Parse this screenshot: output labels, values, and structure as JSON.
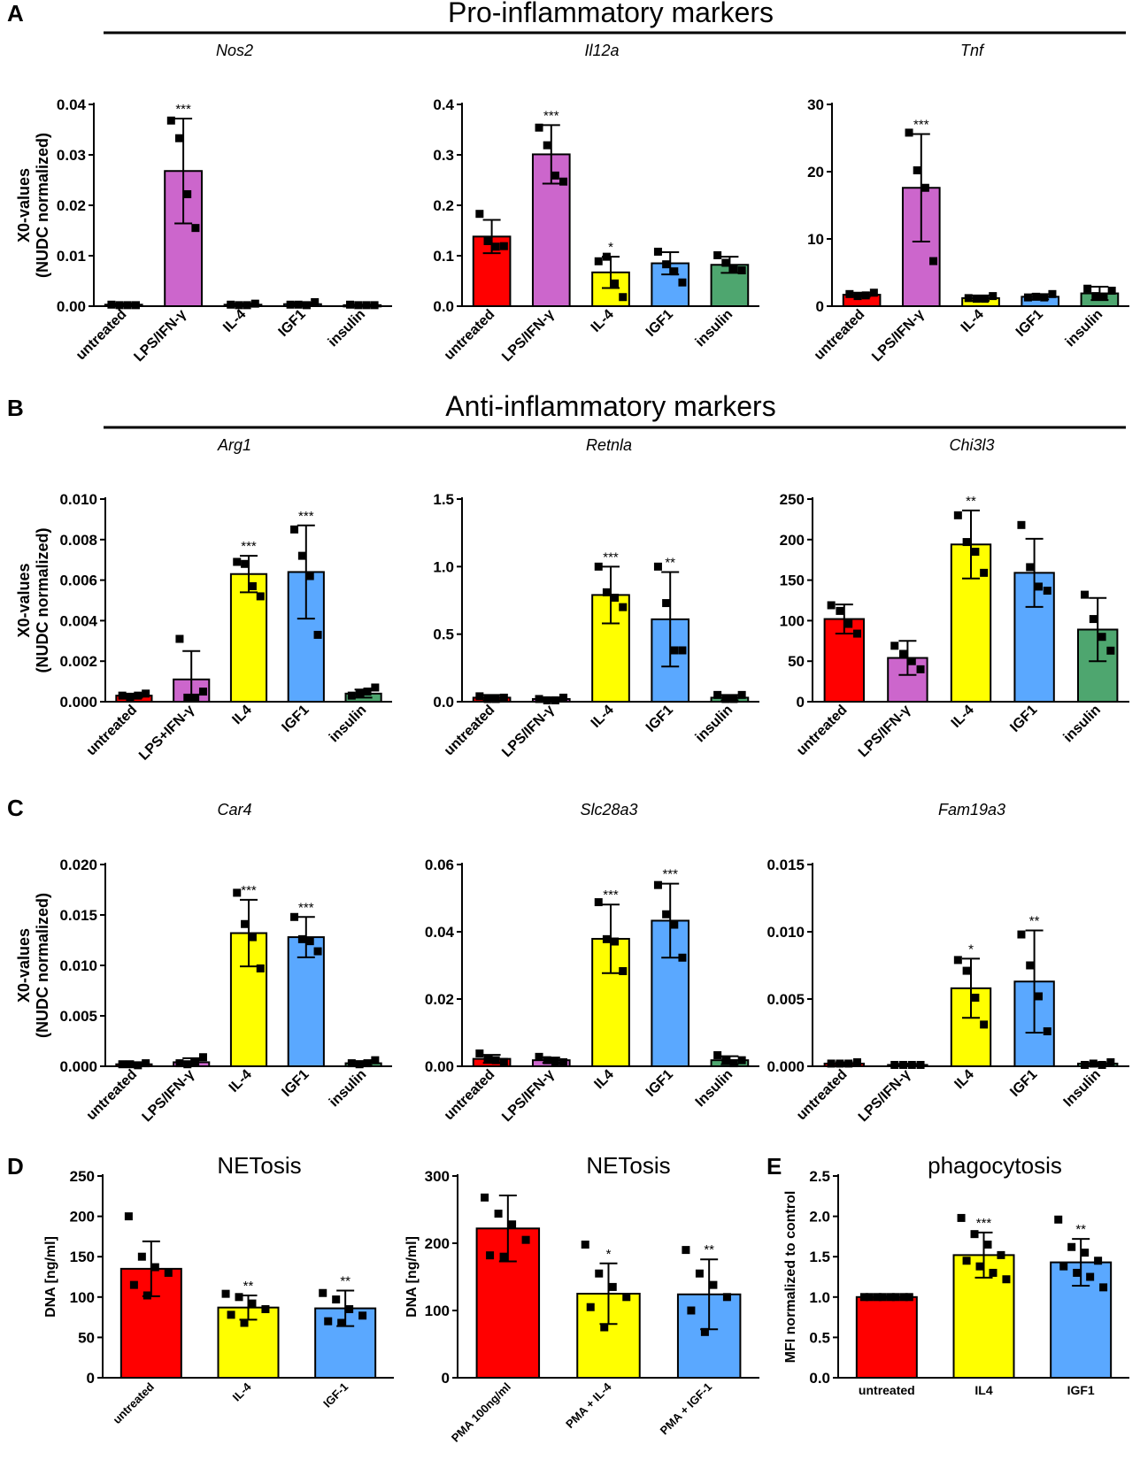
{
  "figure": {
    "panel_labels": [
      "A",
      "B",
      "C",
      "D",
      "E"
    ],
    "section_titles": [
      "Pro-inflammatory markers",
      "Anti-inflammatory markers"
    ]
  },
  "colors": {
    "red": "#ff0000",
    "magenta": "#cc66cc",
    "yellow": "#ffff00",
    "blue": "#5aa8ff",
    "green": "#4ea66f"
  },
  "chart_data": [
    {
      "id": "nos2",
      "type": "bar",
      "title": "Nos2",
      "title_italic": true,
      "ylabel": [
        "X0-values",
        "(NUDC normalized)"
      ],
      "ylim": [
        0,
        0.04
      ],
      "yticks": [
        "0.00",
        "0.01",
        "0.02",
        "0.03",
        "0.04"
      ],
      "categories": [
        "untreated",
        "LPS/IFN-γ",
        "IL-4",
        "IGF1",
        "insulin"
      ],
      "colors": [
        "red",
        "magenta",
        "yellow",
        "blue",
        "green"
      ],
      "values": [
        0.0003,
        0.0268,
        0.0003,
        0.0004,
        0.0002
      ],
      "errors": [
        0.0002,
        0.0104,
        0.0002,
        0.0003,
        0.0001
      ],
      "points": [
        [
          0.0003,
          0.0002,
          0.0002,
          0.0002
        ],
        [
          0.0368,
          0.0333,
          0.0222,
          0.0155
        ],
        [
          0.0003,
          0.0002,
          0.0002,
          0.0005
        ],
        [
          0.0003,
          0.0003,
          0.0002,
          0.0008
        ],
        [
          0.0003,
          0.0002,
          0.0002,
          0.0002
        ]
      ],
      "stars": [
        "",
        "***",
        "",
        "",
        ""
      ]
    },
    {
      "id": "il12a",
      "type": "bar",
      "title": "Il12a",
      "title_italic": true,
      "ylabel": [],
      "ylim": [
        0,
        0.4
      ],
      "yticks": [
        "0.0",
        "0.1",
        "0.2",
        "0.3",
        "0.4"
      ],
      "categories": [
        "untreated",
        "LPS/IFN-γ",
        "IL-4",
        "IGF1",
        "insulin"
      ],
      "colors": [
        "red",
        "magenta",
        "yellow",
        "blue",
        "green"
      ],
      "values": [
        0.138,
        0.301,
        0.067,
        0.085,
        0.082
      ],
      "errors": [
        0.033,
        0.058,
        0.031,
        0.022,
        0.016
      ],
      "points": [
        [
          0.183,
          0.129,
          0.118,
          0.119
        ],
        [
          0.354,
          0.319,
          0.259,
          0.247
        ],
        [
          0.089,
          0.098,
          0.045,
          0.018
        ],
        [
          0.108,
          0.083,
          0.069,
          0.047
        ],
        [
          0.101,
          0.086,
          0.074,
          0.071
        ]
      ],
      "stars": [
        "",
        "***",
        "*",
        "",
        ""
      ]
    },
    {
      "id": "tnf",
      "type": "bar",
      "title": "Tnf",
      "title_italic": true,
      "ylabel": [],
      "ylim": [
        0,
        30
      ],
      "yticks": [
        "0",
        "10",
        "20",
        "30"
      ],
      "categories": [
        "untreated",
        "LPS/IFN-γ",
        "IL-4",
        "IGF1",
        "insulin"
      ],
      "colors": [
        "red",
        "magenta",
        "yellow",
        "blue",
        "green"
      ],
      "values": [
        1.7,
        17.6,
        1.2,
        1.4,
        1.9
      ],
      "errors": [
        0.3,
        8.0,
        0.4,
        0.4,
        1.0
      ],
      "points": [
        [
          1.8,
          1.5,
          1.6,
          2.0
        ],
        [
          25.8,
          20.2,
          17.6,
          6.7
        ],
        [
          1.2,
          1.1,
          1.1,
          1.5
        ],
        [
          1.3,
          1.4,
          1.3,
          1.8
        ],
        [
          2.6,
          1.5,
          1.4,
          2.3
        ]
      ],
      "stars": [
        "",
        "***",
        "",
        "",
        ""
      ]
    },
    {
      "id": "arg1",
      "type": "bar",
      "title": "Arg1",
      "title_italic": true,
      "ylabel": [
        "X0-values",
        "(NUDC normalized)"
      ],
      "ylim": [
        0,
        0.01
      ],
      "yticks": [
        "0.000",
        "0.002",
        "0.004",
        "0.006",
        "0.008",
        "0.010"
      ],
      "categories": [
        "untreated",
        "LPS+IFN-γ",
        "IL4",
        "IGF1",
        "insulin"
      ],
      "colors": [
        "red",
        "magenta",
        "yellow",
        "blue",
        "green"
      ],
      "values": [
        0.0003,
        0.0011,
        0.0063,
        0.0064,
        0.0004
      ],
      "errors": [
        0.0001,
        0.0014,
        0.0009,
        0.0023,
        0.0002
      ],
      "points": [
        [
          0.0003,
          0.0002,
          0.0003,
          0.0004
        ],
        [
          0.0031,
          0.0002,
          0.0002,
          0.0005
        ],
        [
          0.0069,
          0.0068,
          0.0057,
          0.0052
        ],
        [
          0.0085,
          0.0072,
          0.0062,
          0.0033
        ],
        [
          0.0003,
          0.0004,
          0.0005,
          0.0007
        ]
      ],
      "stars": [
        "",
        "",
        "***",
        "***",
        ""
      ]
    },
    {
      "id": "retnla",
      "type": "bar",
      "title": "Retnla",
      "title_italic": true,
      "ylabel": [],
      "ylim": [
        0,
        1.5
      ],
      "yticks": [
        "0.0",
        "0.5",
        "1.0",
        "1.5"
      ],
      "categories": [
        "untreated",
        "LPS/IFN-γ",
        "IL-4",
        "IGF1",
        "insulin"
      ],
      "colors": [
        "red",
        "magenta",
        "yellow",
        "blue",
        "green"
      ],
      "values": [
        0.03,
        0.02,
        0.79,
        0.61,
        0.03
      ],
      "errors": [
        0.02,
        0.01,
        0.21,
        0.35,
        0.02
      ],
      "points": [
        [
          0.04,
          0.02,
          0.02,
          0.03
        ],
        [
          0.02,
          0.01,
          0.01,
          0.03
        ],
        [
          1.0,
          0.81,
          0.77,
          0.7
        ],
        [
          1.0,
          0.73,
          0.38,
          0.38
        ],
        [
          0.05,
          0.02,
          0.02,
          0.05
        ]
      ],
      "stars": [
        "",
        "",
        "***",
        "**",
        ""
      ]
    },
    {
      "id": "chi3l3",
      "type": "bar",
      "title": "Chi3l3",
      "title_italic": true,
      "ylabel": [],
      "ylim": [
        0,
        250
      ],
      "yticks": [
        "0",
        "50",
        "100",
        "150",
        "200",
        "250"
      ],
      "categories": [
        "untreated",
        "LPS/IFN-γ",
        "IL-4",
        "IGF1",
        "insulin"
      ],
      "colors": [
        "red",
        "magenta",
        "yellow",
        "blue",
        "green"
      ],
      "values": [
        102,
        54,
        194,
        159,
        89
      ],
      "errors": [
        18,
        21,
        42,
        42,
        39
      ],
      "points": [
        [
          119,
          112,
          96,
          84
        ],
        [
          69,
          59,
          50,
          40
        ],
        [
          230,
          197,
          185,
          159
        ],
        [
          218,
          166,
          142,
          137
        ],
        [
          132,
          102,
          80,
          63
        ]
      ],
      "stars": [
        "",
        "",
        "**",
        "",
        ""
      ]
    },
    {
      "id": "car4",
      "type": "bar",
      "title": "Car4",
      "title_italic": true,
      "ylabel": [
        "X0-values",
        "(NUDC normalized)"
      ],
      "ylim": [
        0,
        0.02
      ],
      "yticks": [
        "0.000",
        "0.005",
        "0.010",
        "0.015",
        "0.020"
      ],
      "categories": [
        "untreated",
        "LPS/IFN-γ",
        "IL-4",
        "IGF1",
        "insulin"
      ],
      "colors": [
        "red",
        "magenta",
        "yellow",
        "blue",
        "green"
      ],
      "values": [
        0.0002,
        0.0004,
        0.0132,
        0.0128,
        0.0003
      ],
      "errors": [
        0.0001,
        0.0004,
        0.0033,
        0.002,
        0.0002
      ],
      "points": [
        [
          0.0002,
          0.0002,
          0.0001,
          0.0003
        ],
        [
          0.0003,
          0.0002,
          0.0004,
          0.0009
        ],
        [
          0.0172,
          0.0141,
          0.0128,
          0.0097
        ],
        [
          0.0148,
          0.0126,
          0.0124,
          0.0114
        ],
        [
          0.0003,
          0.0002,
          0.0003,
          0.0006
        ]
      ],
      "stars": [
        "",
        "",
        "***",
        "***",
        ""
      ]
    },
    {
      "id": "slc28a3",
      "type": "bar",
      "title": "Slc28a3",
      "title_italic": true,
      "ylabel": [],
      "ylim": [
        0,
        0.06
      ],
      "yticks": [
        "0.00",
        "0.02",
        "0.04",
        "0.06"
      ],
      "categories": [
        "untreated",
        "LPS/IFN-γ",
        "IL4",
        "IGF1",
        "Insulin"
      ],
      "colors": [
        "red",
        "magenta",
        "yellow",
        "blue",
        "green"
      ],
      "values": [
        0.0022,
        0.0018,
        0.0379,
        0.0433,
        0.0018
      ],
      "errors": [
        0.0012,
        0.0008,
        0.0102,
        0.011,
        0.0012
      ],
      "points": [
        [
          0.0038,
          0.0022,
          0.0018,
          0.0013
        ],
        [
          0.0028,
          0.0018,
          0.0013,
          0.0012
        ],
        [
          0.0488,
          0.0378,
          0.0371,
          0.0283
        ],
        [
          0.0539,
          0.0452,
          0.0421,
          0.0323
        ],
        [
          0.0033,
          0.0016,
          0.0009,
          0.0018
        ]
      ],
      "stars": [
        "",
        "",
        "***",
        "***",
        ""
      ]
    },
    {
      "id": "fam19a3",
      "type": "bar",
      "title": "Fam19a3",
      "title_italic": true,
      "ylabel": [],
      "ylim": [
        0,
        0.015
      ],
      "yticks": [
        "0.000",
        "0.005",
        "0.010",
        "0.015"
      ],
      "categories": [
        "untreated",
        "LPS/IFN-γ",
        "IL4",
        "IGF1",
        "Insulin"
      ],
      "colors": [
        "red",
        "magenta",
        "yellow",
        "blue",
        "green"
      ],
      "values": [
        0.0002,
        0.0001,
        0.0058,
        0.0063,
        0.0002
      ],
      "errors": [
        0.0001,
        0.0001,
        0.0022,
        0.0038,
        0.0001
      ],
      "points": [
        [
          0.0002,
          0.0002,
          0.0002,
          0.0003
        ],
        [
          0.0001,
          0.0001,
          0.0001,
          0.0001
        ],
        [
          0.0079,
          0.0071,
          0.0051,
          0.0031
        ],
        [
          0.0098,
          0.0075,
          0.0052,
          0.0026
        ],
        [
          0.0001,
          0.0002,
          0.0001,
          0.0003
        ]
      ],
      "stars": [
        "",
        "",
        "*",
        "**",
        ""
      ]
    },
    {
      "id": "netosis1",
      "type": "bar",
      "title": "NETosis",
      "title_italic": false,
      "ylabel": [
        "DNA [ng/ml]"
      ],
      "ylim": [
        0,
        250
      ],
      "yticks": [
        "0",
        "50",
        "100",
        "150",
        "200",
        "250"
      ],
      "categories": [
        "untreated",
        "IL-4",
        "IGF-1"
      ],
      "colors": [
        "red",
        "yellow",
        "blue"
      ],
      "values": [
        135,
        87,
        86
      ],
      "errors": [
        34,
        15,
        22
      ],
      "points": [
        [
          200,
          150,
          137,
          130,
          115,
          102
        ],
        [
          104,
          100,
          92,
          85,
          78,
          68
        ],
        [
          105,
          97,
          85,
          77,
          70,
          68
        ]
      ],
      "stars": [
        "",
        "**",
        "**"
      ]
    },
    {
      "id": "netosis2",
      "type": "bar",
      "title": "NETosis",
      "title_italic": false,
      "ylabel": [
        "DNA [ng/ml]"
      ],
      "ylim": [
        0,
        300
      ],
      "yticks": [
        "0",
        "100",
        "200",
        "300"
      ],
      "categories": [
        "PMA 100ng/ml",
        "PMA + IL-4",
        "PMA + IGF-1"
      ],
      "colors": [
        "red",
        "yellow",
        "blue"
      ],
      "values": [
        222,
        125,
        124
      ],
      "errors": [
        49,
        45,
        52
      ],
      "points": [
        [
          268,
          244,
          228,
          205,
          182,
          180
        ],
        [
          198,
          155,
          135,
          120,
          105,
          75
        ],
        [
          190,
          155,
          138,
          120,
          100,
          68
        ]
      ],
      "stars": [
        "",
        "*",
        "**"
      ]
    },
    {
      "id": "phagocytosis",
      "type": "bar",
      "title": "phagocytosis",
      "title_italic": false,
      "ylabel": [
        "MFI normalized to control"
      ],
      "ylim": [
        0,
        2.5
      ],
      "yticks": [
        "0.0",
        "0.5",
        "1.0",
        "1.5",
        "2.0",
        "2.5"
      ],
      "categories": [
        "untreated",
        "IL4",
        "IGF1"
      ],
      "colors": [
        "red",
        "yellow",
        "blue"
      ],
      "values": [
        1.0,
        1.52,
        1.43
      ],
      "errors": [
        0.01,
        0.28,
        0.29
      ],
      "points": [
        [
          1.0,
          1.0,
          1.0,
          1.0,
          1.0,
          1.0,
          1.0,
          1.0
        ],
        [
          1.98,
          1.78,
          1.65,
          1.52,
          1.45,
          1.38,
          1.3,
          1.22
        ],
        [
          1.96,
          1.62,
          1.55,
          1.45,
          1.38,
          1.3,
          1.25,
          1.12
        ]
      ],
      "stars": [
        "",
        "***",
        "**"
      ]
    }
  ]
}
